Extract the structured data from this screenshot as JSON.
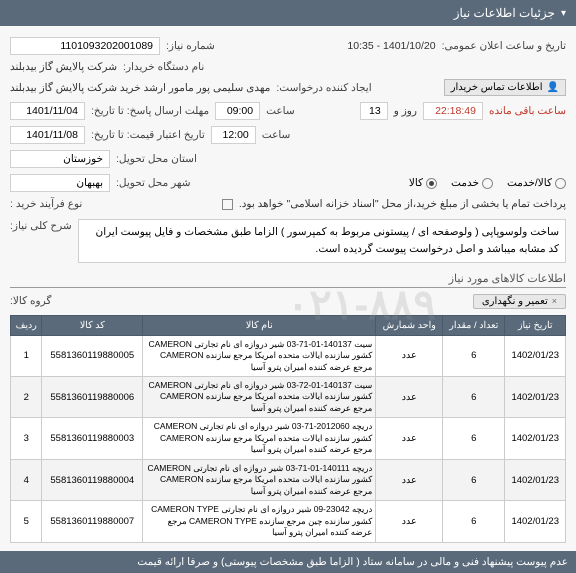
{
  "header": {
    "title": "جزئیات اطلاعات نیاز"
  },
  "form": {
    "req_no_label": "شماره نیاز:",
    "req_no": "1101093202001089",
    "announce_label": "تاریخ و ساعت اعلان عمومی:",
    "announce_value": "1401/10/20 - 10:35",
    "org_label": "نام دستگاه خریدار:",
    "org_value": "شرکت پالایش گاز بیدبلند",
    "creator_label": "ایجاد کننده درخواست:",
    "creator_value": "مهدی سلیمی پور مامور ارشد خرید شرکت پالایش گاز بیدبلند",
    "contact_btn": "اطلاعات تماس خریدار",
    "deadline_label": "مهلت ارسال پاسخ: تا تاریخ:",
    "deadline_date": "1401/11/04",
    "time_label": "ساعت",
    "deadline_time": "09:00",
    "remain_days": "13",
    "remain_days_label": "روز و",
    "remain_time": "22:18:49",
    "remain_suffix": "ساعت باقی مانده",
    "valid_label": "تاریخ اعتبار قیمت: تا تاریخ:",
    "valid_date": "1401/11/08",
    "valid_time": "12:00",
    "province_label": "استان محل تحویل:",
    "province_value": "خوزستان",
    "city_label": "شهر محل تحویل:",
    "city_value": "بهبهان",
    "radio_label": "",
    "radio_goods": "کالا",
    "radio_service": "خدمت",
    "radio_both": "کالا/خدمت",
    "process_label": "نوع فرآیند خرید :",
    "process_note": "پرداخت تمام یا بخشی از مبلغ خرید،از محل \"اسناد خزانه اسلامی\" خواهد بود.",
    "desc_label": "شرح کلی نیاز:",
    "desc_text": "ساخت ولوسوپاپی  ( ولوصفحه ای  / پیستونی مربوط به کمپرسور ) الزاما طبق مشخصات و فایل پیوست ایران کد مشابه میباشد و اصل درخواست پیوست گردیده است.",
    "items_section": "اطلاعات کالاهای مورد نیاز",
    "group_label": "گروه کالا:",
    "group_tag": "تعمیر و نگهداری"
  },
  "table": {
    "headers": {
      "row": "ردیف",
      "code": "کد کالا",
      "name": "نام کالا",
      "unit": "واحد شمارش",
      "qty": "تعداد / مقدار",
      "date": "تاریخ نیاز"
    },
    "rows": [
      {
        "idx": "1",
        "code": "5581360119880005",
        "name": "سیت 140137-01-71-03 شیر دروازه ای نام تجارتی CAMERON کشور سازنده ایالات متحده امریکا مرجع سازنده CAMERON مرجع عرضه کننده امیران پترو آسیا",
        "unit": "عدد",
        "qty": "6",
        "date": "1402/01/23"
      },
      {
        "idx": "2",
        "code": "5581360119880006",
        "name": "سیت 140137-01-72-03 شیر دروازه ای نام تجارتی CAMERON کشور سازنده ایالات متحده امریکا مرجع سازنده CAMERON مرجع عرضه کننده امیران پترو آسیا",
        "unit": "عدد",
        "qty": "6",
        "date": "1402/01/23"
      },
      {
        "idx": "3",
        "code": "5581360119880003",
        "name": "دریچه 2012060-71-03 شیر دروازه ای نام تجارتی CAMERON کشور سازنده ایالات متحده امریکا مرجع سازنده CAMERON مرجع عرضه کننده امیران پترو آسیا",
        "unit": "عدد",
        "qty": "6",
        "date": "1402/01/23"
      },
      {
        "idx": "4",
        "code": "5581360119880004",
        "name": "دریچه 140111-01-71-03 شیر دروازه ای نام تجارتی CAMERON کشور سازنده ایالات متحده امریکا مرجع سازنده CAMERON مرجع عرضه کننده امیران پترو آسیا",
        "unit": "عدد",
        "qty": "6",
        "date": "1402/01/23"
      },
      {
        "idx": "5",
        "code": "5581360119880007",
        "name": "دریچه 23042-09 شیر دروازه ای نام تجارتی CAMERON TYPE کشور سازنده چین مرجع سازنده CAMERON TYPE مرجع عرضه کننده امیران پترو آسیا",
        "unit": "عدد",
        "qty": "6",
        "date": "1402/01/23"
      }
    ]
  },
  "footer": {
    "text": "عدم پیوست پیشنهاد فنی و مالی در سامانه ستاد ( الزاما طبق مشخصات پیوستی)  و صرفا ارائه قیمت"
  },
  "watermark": "۰۲۱-۸۸۹"
}
